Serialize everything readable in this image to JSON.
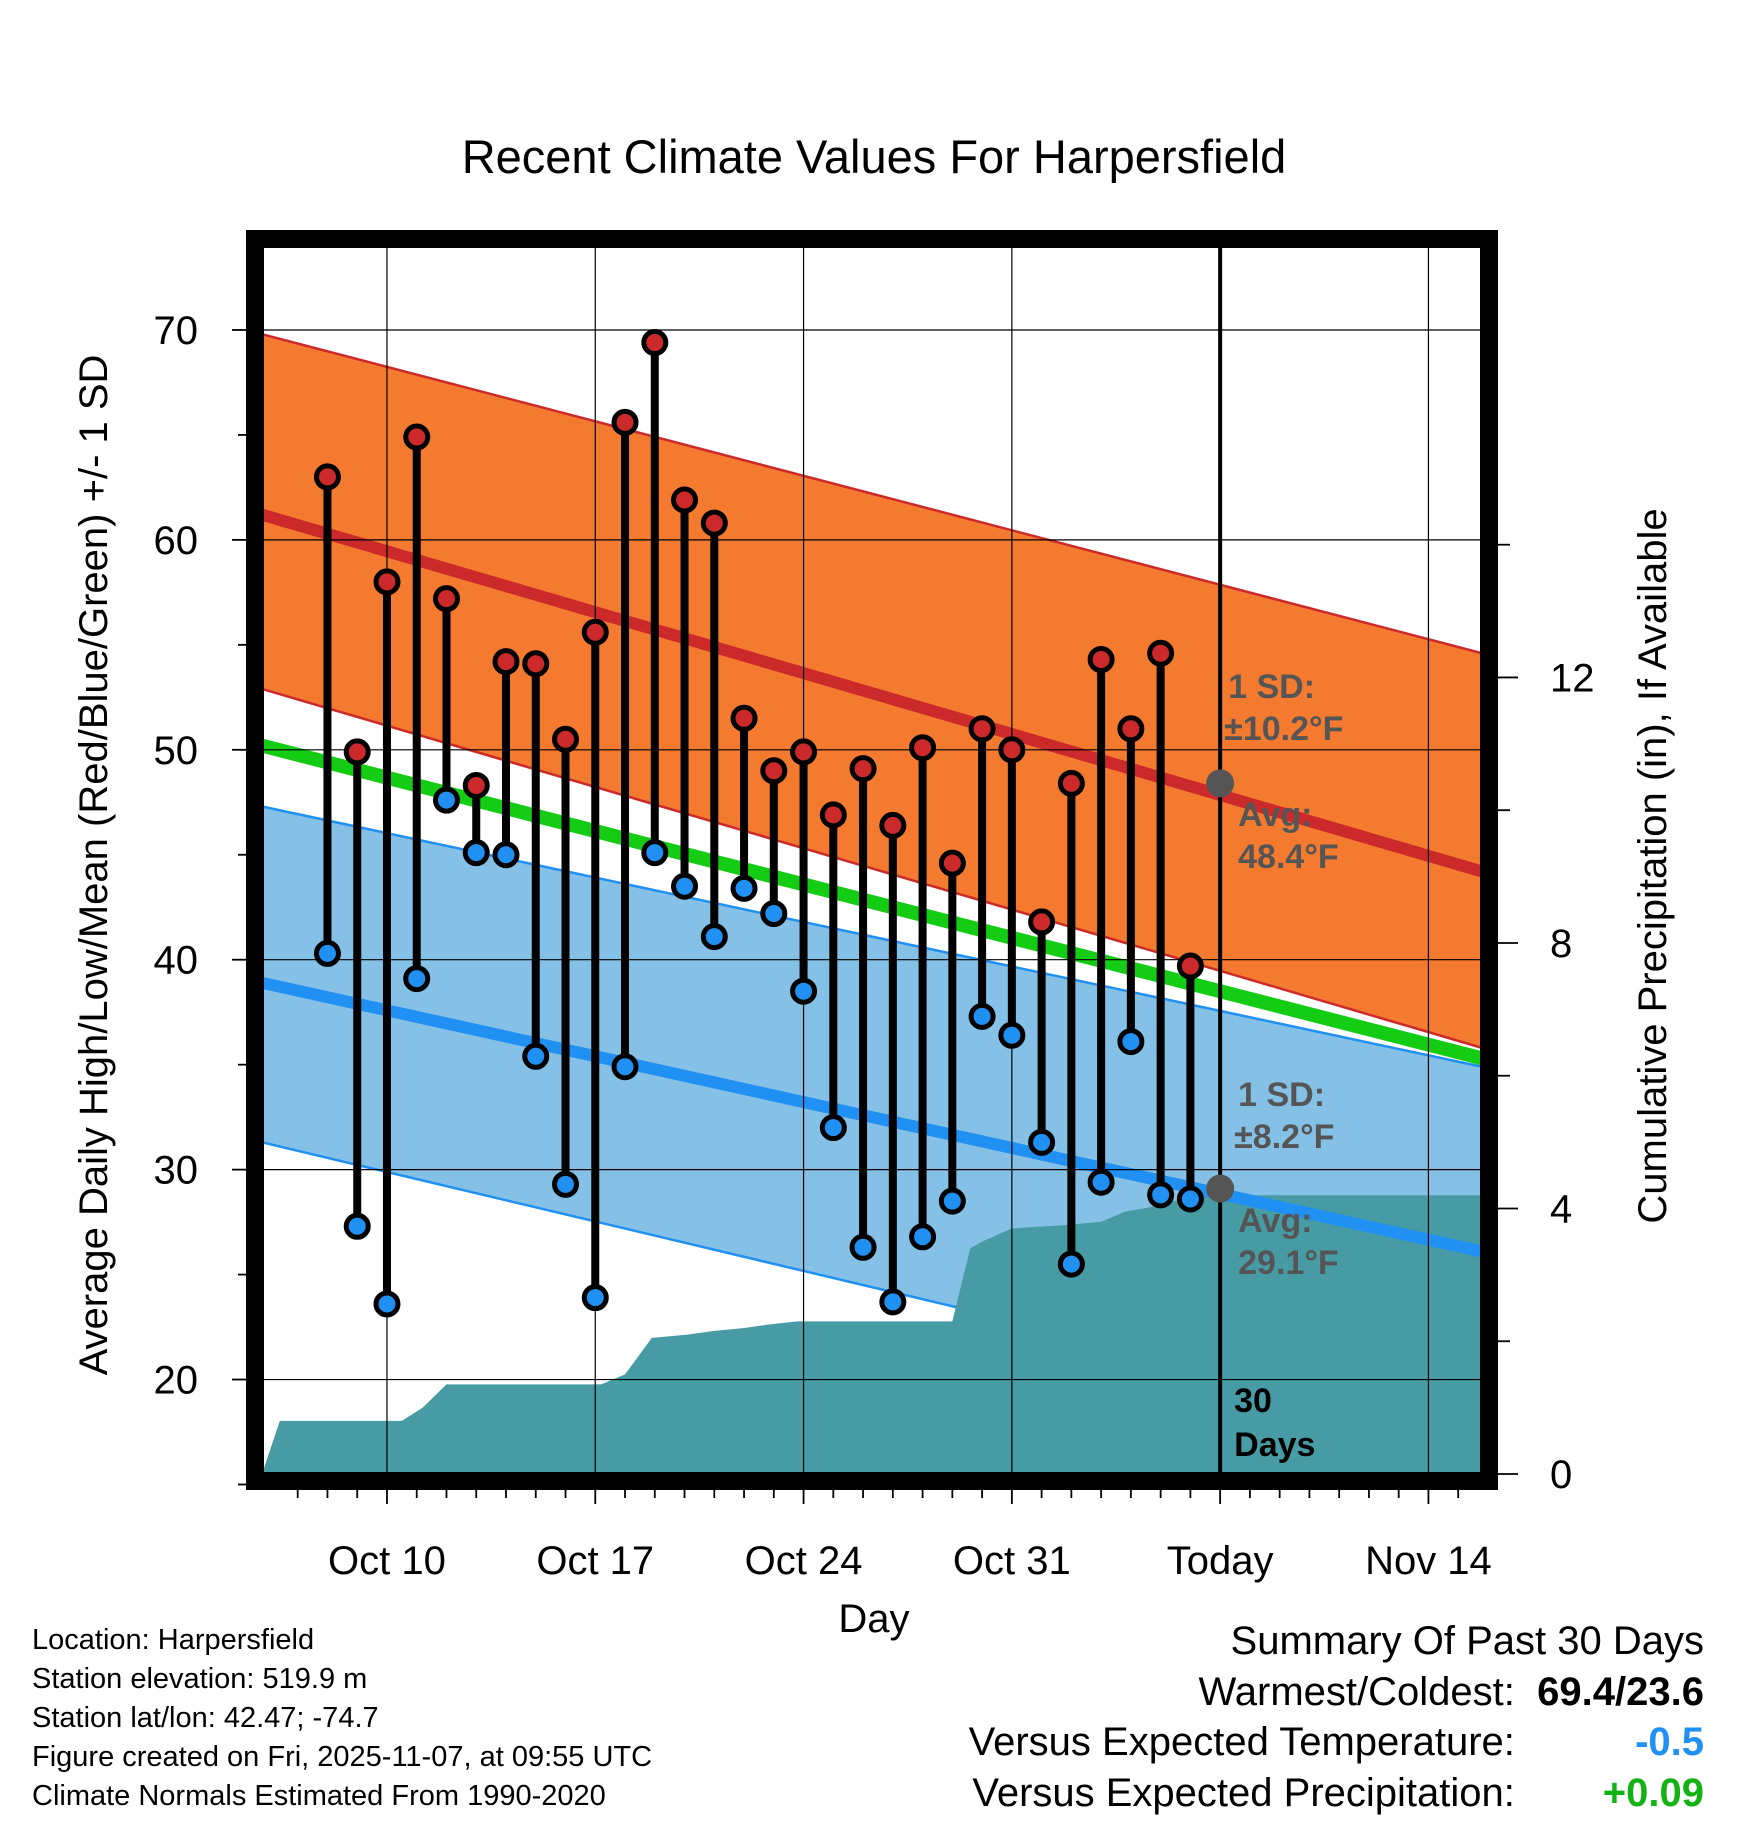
{
  "chart_data": {
    "type": "line",
    "title": "Recent Climate Values For Harpersfield",
    "xlabel": "Day",
    "ylabel_left": "Average Daily High/Low/Mean (Red/Blue/Green) +/- 1 SD",
    "ylabel_right": "Cumulative Precipitation (in), If Available",
    "ylim_left": [
      15.5,
      74
    ],
    "ylim_right": [
      0,
      18.5
    ],
    "x_range_days": [
      -32.2,
      8.8
    ],
    "y_ticks_left": [
      20,
      30,
      40,
      50,
      60,
      70
    ],
    "y_ticks_right": [
      0,
      4,
      8,
      12
    ],
    "x_ticks": [
      {
        "day": -28,
        "label": "Oct 10"
      },
      {
        "day": -21,
        "label": "Oct 17"
      },
      {
        "day": -14,
        "label": "Oct 24"
      },
      {
        "day": -7,
        "label": "Oct 31"
      },
      {
        "day": 0,
        "label": "Today"
      },
      {
        "day": 7,
        "label": "Nov 14"
      }
    ],
    "normals": {
      "days": [
        -32.2,
        8.8
      ],
      "high_avg": [
        61.2,
        44.2
      ],
      "high_upper": [
        69.8,
        54.6
      ],
      "high_lower": [
        52.9,
        35.8
      ],
      "low_avg": [
        38.9,
        26.1
      ],
      "low_upper": [
        47.3,
        34.9
      ],
      "low_lower": [
        31.3,
        17.5
      ],
      "mean_avg": [
        50.2,
        35.3
      ]
    },
    "daily": {
      "days": [
        -30,
        -29,
        -28,
        -27,
        -26,
        -25,
        -24,
        -23,
        -22,
        -21,
        -20,
        -19,
        -18,
        -17,
        -16,
        -15,
        -14,
        -13,
        -12,
        -11,
        -10,
        -9,
        -8,
        -7,
        -6,
        -5,
        -4,
        -3,
        -2,
        -1
      ],
      "highs": [
        63.0,
        49.9,
        58.0,
        64.9,
        57.2,
        48.3,
        54.2,
        54.1,
        50.5,
        55.6,
        65.6,
        69.4,
        61.9,
        60.8,
        51.5,
        49.0,
        49.9,
        46.9,
        49.1,
        46.4,
        50.1,
        44.6,
        51.0,
        50.0,
        41.8,
        48.4,
        54.3,
        51.0,
        54.6,
        39.7
      ],
      "lows": [
        40.3,
        27.3,
        23.6,
        39.1,
        47.6,
        45.1,
        45.0,
        35.4,
        29.3,
        23.9,
        34.9,
        45.1,
        43.5,
        41.1,
        43.4,
        42.2,
        38.5,
        32.0,
        26.3,
        23.7,
        26.8,
        28.5,
        37.3,
        36.4,
        31.3,
        25.5,
        29.4,
        36.1,
        28.8,
        28.6
      ]
    },
    "precip_cumulative": {
      "days": [
        -32.2,
        -31.6,
        -27.5,
        -26.8,
        -26.0,
        -21.7,
        -20.8,
        -20.0,
        -19.1,
        -17.9,
        -17.1,
        -16.0,
        -15.2,
        -14.2,
        -13.3,
        -12.0,
        -10.0,
        -9.0,
        -8.4,
        -8.0,
        -7.0,
        -5.2,
        -4.0,
        -3.2,
        -2.0,
        -1.8,
        -1.0,
        -0.4,
        8.8
      ],
      "values": [
        0.0,
        0.8,
        0.8,
        1.0,
        1.35,
        1.35,
        1.35,
        1.5,
        2.05,
        2.1,
        2.15,
        2.2,
        2.25,
        2.3,
        2.3,
        2.3,
        2.3,
        2.3,
        3.4,
        3.5,
        3.7,
        3.75,
        3.8,
        3.95,
        4.05,
        4.1,
        4.15,
        4.2,
        4.2
      ]
    },
    "annotations": {
      "high_sd_label": "1 SD:",
      "high_sd_value": "±10.2°F",
      "high_avg_label": "Avg:",
      "high_avg_value": "48.4°F",
      "low_sd_label": "1 SD:",
      "low_sd_value": "±8.2°F",
      "low_avg_label": "Avg:",
      "low_avg_value": "29.1°F",
      "high_avg_today": 48.4,
      "low_avg_today": 29.1,
      "window_label_1": "30",
      "window_label_2": "Days"
    },
    "colors": {
      "high_band": "#f47a30",
      "high_line": "#cc2a2a",
      "low_band": "#85c1e6",
      "low_line": "#2091f2",
      "mean_line": "#14cc14",
      "precip": "#479ba4",
      "high_dot": "#cc2a2a",
      "low_dot": "#2091f2",
      "marker": "#555555",
      "annotation": "#555555"
    }
  },
  "footer": {
    "location": "Location: Harpersfield",
    "elevation": "Station elevation: 519.9 m",
    "latlon": "Station lat/lon: 42.47; -74.7",
    "created": "Figure created on Fri, 2025-11-07, at 09:55 UTC",
    "normals": "Climate Normals Estimated From 1990-2020"
  },
  "summary": {
    "title": "Summary Of Past 30 Days",
    "warmest_label": "Warmest/Coldest:",
    "warmest_value": "69.4/23.6",
    "temp_label": "Versus Expected Temperature:",
    "temp_value": "-0.5",
    "temp_color": "#2091f2",
    "precip_label": "Versus Expected Precipitation:",
    "precip_value": "+0.09",
    "precip_color": "#14b314"
  }
}
